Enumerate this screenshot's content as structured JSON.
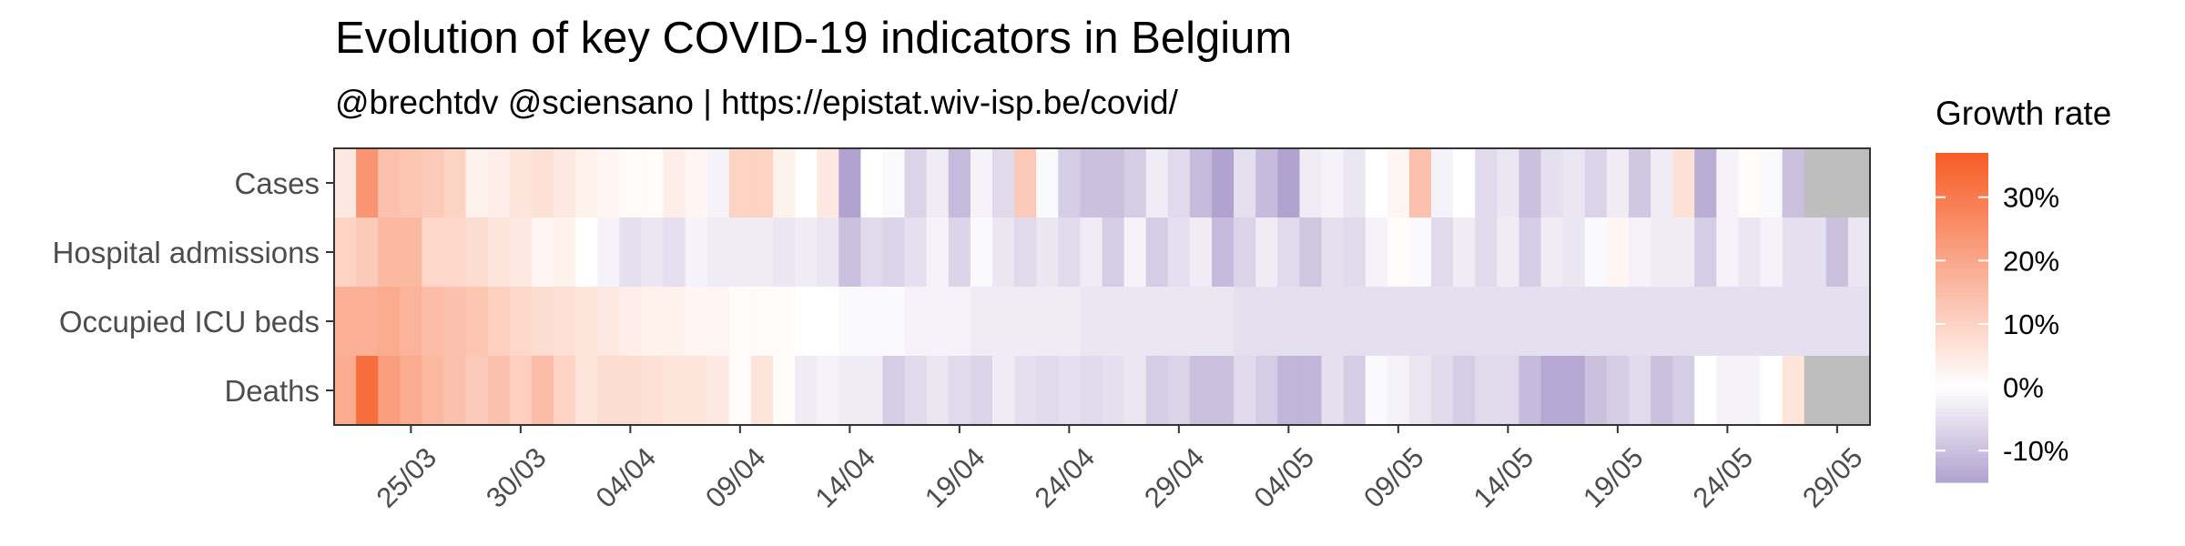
{
  "chart_data": {
    "type": "heatmap",
    "title": "Evolution of key COVID-19 indicators in Belgium",
    "subtitle": "@brechtdv @sciensano | https://epistat.wiv-isp.be/covid/",
    "rows": [
      "Cases",
      "Hospital admissions",
      "Occupied ICU beds",
      "Deaths"
    ],
    "x_start_date": "2020-03-22",
    "x_tick_labels": [
      "25/03",
      "30/03",
      "04/04",
      "09/04",
      "14/04",
      "19/04",
      "24/04",
      "29/04",
      "04/05",
      "09/05",
      "14/05",
      "19/05",
      "24/05",
      "29/05"
    ],
    "x_tick_day_index": [
      3,
      8,
      13,
      18,
      23,
      28,
      33,
      38,
      43,
      48,
      53,
      58,
      63,
      68
    ],
    "values": [
      [
        5,
        24,
        14,
        13,
        12,
        10,
        3,
        4,
        6,
        7,
        5,
        3,
        2,
        1,
        1,
        4,
        2,
        -2,
        10,
        10,
        3,
        0,
        5,
        -15,
        0,
        -1,
        -7,
        -3,
        -11,
        -2,
        -6,
        12,
        -1,
        -8,
        -10,
        -10,
        -8,
        -3,
        -6,
        -11,
        -15,
        -5,
        -11,
        -19,
        -3,
        -2,
        -4,
        0,
        2,
        14,
        -2,
        0,
        -6,
        -4,
        -10,
        -5,
        -4,
        -7,
        -3,
        -9,
        -3,
        7,
        -13,
        -2,
        1,
        -1,
        -10,
        null,
        null,
        null
      ],
      [
        10,
        12,
        16,
        16,
        9,
        9,
        8,
        6,
        5,
        2,
        3,
        0,
        -2,
        -5,
        -4,
        -5,
        -2,
        -3,
        -3,
        -3,
        -4,
        -3,
        -4,
        -10,
        -6,
        -7,
        -5,
        -2,
        -7,
        -1,
        -4,
        -6,
        -4,
        -6,
        -3,
        -8,
        -2,
        -8,
        -5,
        -3,
        -11,
        -7,
        -3,
        -6,
        -9,
        -5,
        -6,
        -2,
        1,
        -1,
        -6,
        -3,
        -6,
        -3,
        -8,
        -3,
        -4,
        -1,
        2,
        -2,
        -3,
        -3,
        -8,
        -2,
        -4,
        -2,
        -5,
        -5,
        -10,
        -4
      ],
      [
        18,
        18,
        19,
        17,
        15,
        14,
        13,
        11,
        9,
        8,
        7,
        6,
        5,
        4,
        3,
        3,
        2,
        2,
        1,
        1,
        1,
        0,
        0,
        -1,
        -1,
        -1,
        -2,
        -2,
        -2,
        -3,
        -3,
        -3,
        -3,
        -3,
        -4,
        -4,
        -4,
        -4,
        -4,
        -4,
        -4,
        -5,
        -5,
        -5,
        -5,
        -5,
        -5,
        -5,
        -5,
        -5,
        -5,
        -5,
        -5,
        -5,
        -5,
        -5,
        -5,
        -5,
        -5,
        -5,
        -5,
        -5,
        -5,
        -5,
        -5,
        -5,
        -5,
        -5,
        -5,
        -5
      ],
      [
        19,
        33,
        22,
        19,
        16,
        14,
        12,
        14,
        11,
        15,
        10,
        6,
        8,
        8,
        7,
        6,
        6,
        5,
        1,
        6,
        1,
        -3,
        -2,
        -3,
        -3,
        -8,
        -6,
        -4,
        -6,
        -7,
        -3,
        -5,
        -6,
        -5,
        -6,
        -5,
        -4,
        -8,
        -7,
        -10,
        -10,
        -6,
        -8,
        -12,
        -12,
        -5,
        -8,
        -1,
        -2,
        -4,
        -6,
        -8,
        -6,
        -6,
        -11,
        -14,
        -14,
        -10,
        -8,
        -6,
        -10,
        -8,
        0,
        -2,
        -2,
        0,
        6,
        null,
        null,
        null
      ]
    ],
    "color_scale": {
      "label": "Growth rate",
      "low_color": "#b1a2cf",
      "mid_color": "#ffffff",
      "high_color": "#f65c26",
      "domain_min": -15,
      "domain_mid": 0,
      "domain_max": 37,
      "breaks": [
        30,
        20,
        10,
        0,
        -10
      ],
      "break_labels": [
        "30%",
        "20%",
        "10%",
        "0%",
        "-10%"
      ],
      "na_color": "#bebebe"
    }
  }
}
